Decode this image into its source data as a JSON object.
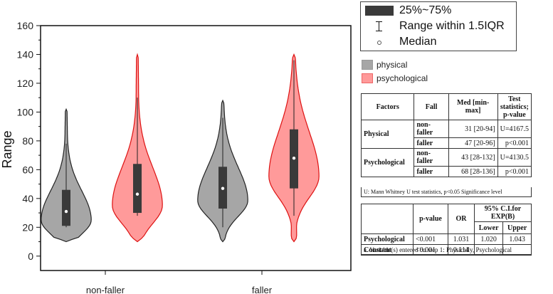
{
  "chart_data": {
    "type": "violin",
    "ylabel": "Range",
    "xlabel": "",
    "ylim": [
      -10,
      160
    ],
    "yticks": [
      "0",
      "20",
      "40",
      "60",
      "80",
      "100",
      "120",
      "140",
      "160"
    ],
    "categories": [
      "non-faller",
      "faller"
    ],
    "series": [
      {
        "name": "physical",
        "color": "#a6a6a6",
        "stroke": "#222222",
        "groups": [
          {
            "category": "non-faller",
            "min": 10,
            "max": 102,
            "q1": 21,
            "median": 31,
            "q3": 46,
            "whisker_low": 20,
            "whisker_high": 78
          },
          {
            "category": "faller",
            "min": 10,
            "max": 108,
            "q1": 33,
            "median": 47,
            "q3": 62,
            "whisker_low": 20,
            "whisker_high": 96
          }
        ]
      },
      {
        "name": "psychological",
        "color": "#ff9a9a",
        "stroke": "#dd1111",
        "groups": [
          {
            "category": "non-faller",
            "min": 10,
            "max": 140,
            "q1": 30,
            "median": 43,
            "q3": 64,
            "whisker_low": 28,
            "whisker_high": 110
          },
          {
            "category": "faller",
            "min": 10,
            "max": 140,
            "q1": 47,
            "median": 68,
            "q3": 88,
            "whisker_low": 28,
            "whisker_high": 136
          }
        ]
      }
    ],
    "grid": false
  },
  "legend_box": {
    "items": [
      {
        "label": "25%~75%"
      },
      {
        "label": "Range within 1.5IQR"
      },
      {
        "label": "Median"
      }
    ]
  },
  "legend_series": [
    {
      "label": "physical",
      "color": "#a6a6a6"
    },
    {
      "label": "psychological",
      "color": "#ff9a9a"
    }
  ],
  "table1": {
    "headers": [
      "Factors",
      "Fall",
      "Med [min-max]",
      "Test statistics; p-value"
    ],
    "rows": [
      {
        "factor": "Physical",
        "fall": "non-faller",
        "med": "31 [20-94]",
        "stat": "U=4167.5"
      },
      {
        "factor": "",
        "fall": "faller",
        "med": "47 [20-96]",
        "stat": "p<0.001"
      },
      {
        "factor": "Psychological",
        "fall": "non-faller",
        "med": "43 [28-132]",
        "stat": "U=4130.5"
      },
      {
        "factor": "",
        "fall": "faller",
        "med": "68 [28-136]",
        "stat": "p<0.001"
      }
    ],
    "note": "U: Mann Whitney U test statistics, p<0.05 Significance level"
  },
  "table2": {
    "headers": {
      "pvalue": "p-value",
      "or": "OR",
      "ci": "95% C.I.for EXP(B)",
      "lower": "Lower",
      "upper": "Upper"
    },
    "rows": [
      {
        "name": "Psychological",
        "p": "<0.001",
        "or": "1.031",
        "lower": "1.020",
        "upper": "1.043"
      },
      {
        "name": "Constant",
        "p": "<0.001",
        "or": "0.114",
        "lower": "",
        "upper": ""
      }
    ],
    "note": "a. Variable(s) entered on step 1: Physically, Psychological"
  }
}
